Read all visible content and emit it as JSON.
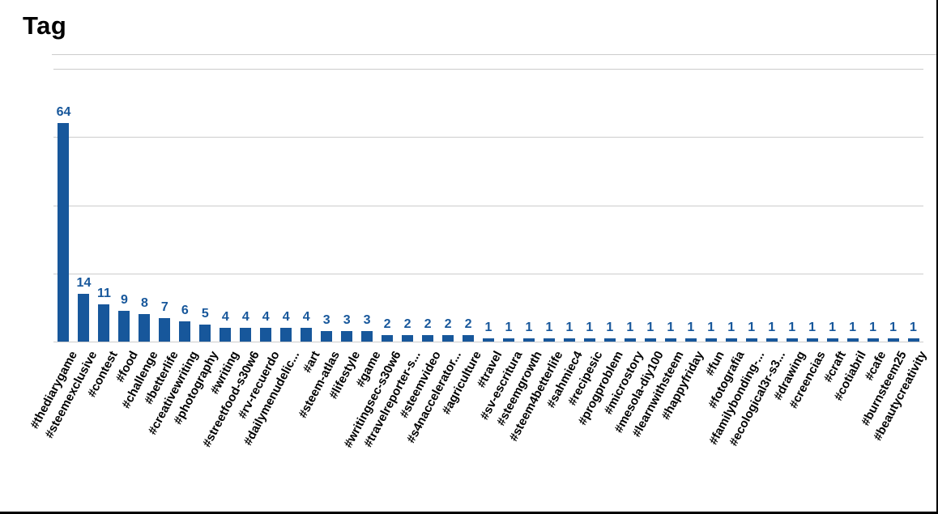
{
  "page": {
    "title": "Tag"
  },
  "chart_data": {
    "type": "bar",
    "title": "Tag",
    "xlabel": "",
    "ylabel": "",
    "ylim": [
      0,
      80
    ],
    "grid_step": 20,
    "grid": true,
    "legend": "none",
    "bar_color": "#17579B",
    "value_label_color": "#17579B",
    "categories": [
      "#thediarygame",
      "#steemexclusive",
      "#contest",
      "#food",
      "#challenge",
      "#betterlife",
      "#creativewriting",
      "#photography",
      "#writing",
      "#streetfood-s30w6",
      "#rv-recuerdo",
      "#dailymenudelic...",
      "#art",
      "#steem-atlas",
      "#lifestyle",
      "#game",
      "#writingsec-s30w6",
      "#travelreporter-s...",
      "#steemvideo",
      "#s4naccelerator...",
      "#agriculture",
      "#travel",
      "#sv-escritura",
      "#steemgrowth",
      "#steem4betterlife",
      "#sahmiec4",
      "#recipesic",
      "#progproblem",
      "#microstory",
      "#mesola-diy100",
      "#learnwithsteem",
      "#happyfriday",
      "#fun",
      "#fotografia",
      "#familybonding-...",
      "#ecological3r-s3...",
      "#drawing",
      "#creencias",
      "#craft",
      "#cotiabril",
      "#cafe",
      "#burnsteem25",
      "#beautycreativity"
    ],
    "values": [
      64,
      14,
      11,
      9,
      8,
      7,
      6,
      5,
      4,
      4,
      4,
      4,
      4,
      3,
      3,
      3,
      2,
      2,
      2,
      2,
      2,
      1,
      1,
      1,
      1,
      1,
      1,
      1,
      1,
      1,
      1,
      1,
      1,
      1,
      1,
      1,
      1,
      1,
      1,
      1,
      1,
      1,
      1
    ]
  }
}
